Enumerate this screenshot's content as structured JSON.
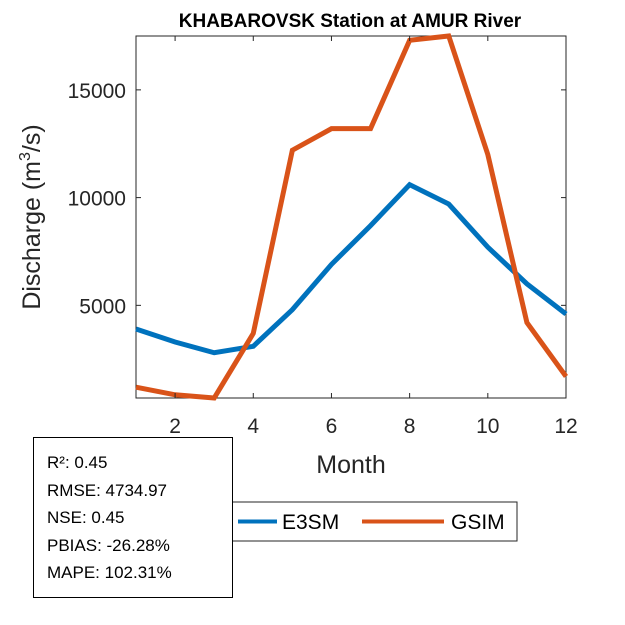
{
  "chart_data": {
    "type": "line",
    "title": "KHABAROVSK  Station at  AMUR  River",
    "xlabel": "Month",
    "ylabel": "Discharge (m",
    "ylabel_sup": "3",
    "ylabel_tail": "/s)",
    "xlim": [
      1,
      12
    ],
    "ylim": [
      700,
      17500
    ],
    "xticks": [
      2,
      4,
      6,
      8,
      10,
      12
    ],
    "yticks": [
      5000,
      10000,
      15000
    ],
    "grid": false,
    "legend_position": "bottom-center, outside",
    "x": [
      1,
      2,
      3,
      4,
      5,
      6,
      7,
      8,
      9,
      10,
      11,
      12
    ],
    "series": [
      {
        "name": "E3SM",
        "color": "#0072BD",
        "values": [
          3900,
          3300,
          2800,
          3100,
          4800,
          6900,
          8700,
          10600,
          9700,
          7700,
          6000,
          4600
        ]
      },
      {
        "name": "GSIM",
        "color": "#D95319",
        "values": [
          1200,
          850,
          700,
          3700,
          12200,
          13200,
          13200,
          17300,
          17500,
          12000,
          4200,
          1700
        ]
      }
    ]
  },
  "stats": [
    "R²: 0.45",
    "RMSE: 4734.97",
    "NSE: 0.45",
    "PBIAS: -26.28%",
    "MAPE: 102.31%"
  ]
}
